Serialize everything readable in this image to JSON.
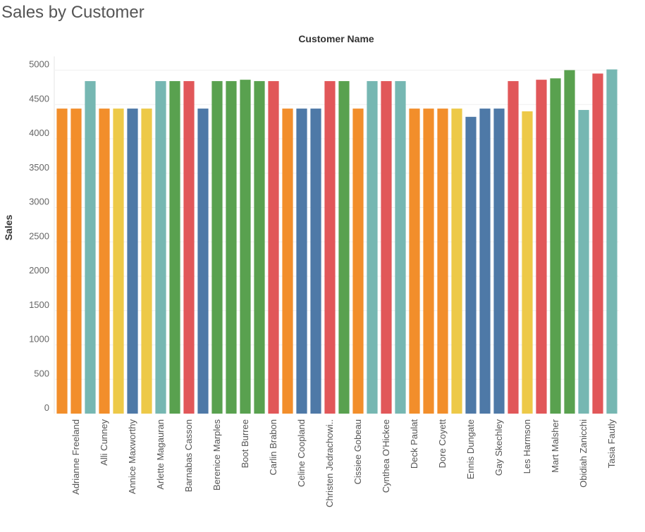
{
  "chart_data": {
    "type": "bar",
    "title": "Sales by Customer",
    "column_header": "Customer Name",
    "ylabel": "Sales",
    "ylim": [
      0,
      5200
    ],
    "yticks": [
      0,
      500,
      1000,
      1500,
      2000,
      2500,
      3000,
      3500,
      4000,
      4500,
      5000
    ],
    "grid": true,
    "shown_labels": [
      "Adrianne Freeland",
      "Alli Cunney",
      "Annice Maxworthy",
      "Arlette Magauran",
      "Barnabas Casson",
      "Berenice Marples",
      "Boot Burree",
      "Carlin Brabon",
      "Celine Coopland",
      "Christen Jedrachowi..",
      "Cissiee Gobeau",
      "Cynthea O'Hickee",
      "Deck Paulat",
      "Dore Coyett",
      "Ennis Dungate",
      "Gay Skechley",
      "Les Harmson",
      "Mart Malsher",
      "Obidiah Zanicchi",
      "Tasia Fautly"
    ],
    "values": [
      4440,
      4440,
      4840,
      4440,
      4440,
      4440,
      4440,
      4840,
      4840,
      4840,
      4440,
      4840,
      4840,
      4860,
      4840,
      4840,
      4440,
      4440,
      4440,
      4840,
      4840,
      4440,
      4840,
      4840,
      4840,
      4440,
      4440,
      4440,
      4440,
      4320,
      4440,
      4440,
      4840,
      4400,
      4860,
      4880,
      5000,
      4420,
      4950,
      5010
    ],
    "colors": [
      "#f28e2b",
      "#f28e2b",
      "#76b7b2",
      "#f28e2b",
      "#edc948",
      "#4e79a7",
      "#edc948",
      "#76b7b2",
      "#59a14f",
      "#e15759",
      "#4e79a7",
      "#59a14f",
      "#59a14f",
      "#59a14f",
      "#59a14f",
      "#e15759",
      "#f28e2b",
      "#4e79a7",
      "#4e79a7",
      "#e15759",
      "#59a14f",
      "#f28e2b",
      "#76b7b2",
      "#e15759",
      "#76b7b2",
      "#f28e2b",
      "#f28e2b",
      "#f28e2b",
      "#edc948",
      "#4e79a7",
      "#4e79a7",
      "#4e79a7",
      "#e15759",
      "#edc948",
      "#e15759",
      "#59a14f",
      "#59a14f",
      "#76b7b2",
      "#e15759",
      "#76b7b2"
    ]
  }
}
